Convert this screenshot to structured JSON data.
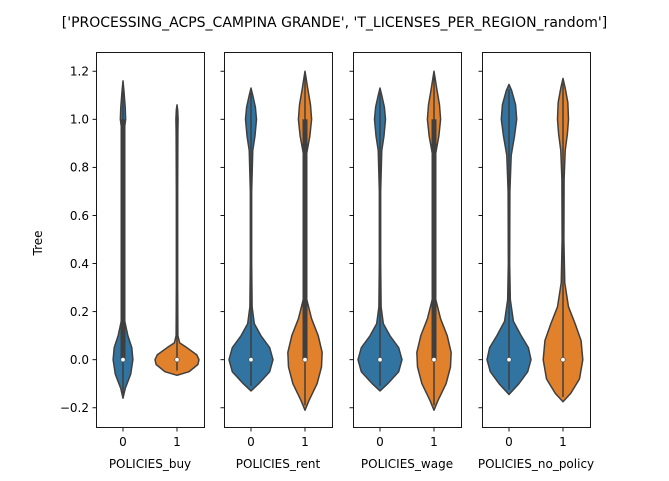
{
  "chart_data": {
    "type": "violin",
    "title": "['PROCESSING_ACPS_CAMPINA GRANDE', 'T_LICENSES_PER_REGION_random']",
    "ylabel": "Tree",
    "ylim": [
      -0.28,
      1.28
    ],
    "yticks": [
      -0.2,
      0.0,
      0.2,
      0.4,
      0.6,
      0.8,
      1.0,
      1.2
    ],
    "ytick_labels": [
      "−0.2",
      "0.0",
      "0.2",
      "0.4",
      "0.6",
      "0.8",
      "1.0",
      "1.2"
    ],
    "categories": [
      "0",
      "1"
    ],
    "colors": {
      "0": "#3274a1",
      "1": "#e1812c",
      "edge": "#3f3f3f",
      "median": "#ffffff"
    },
    "panels": [
      {
        "xlabel": "POLICIES_buy",
        "violins": [
          {
            "category": "0",
            "min": -0.16,
            "max": 1.16,
            "median": 0.0,
            "q1": 0.0,
            "q3": 1.0,
            "profile": [
              [
                -0.16,
                0.0
              ],
              [
                -0.12,
                0.1
              ],
              [
                -0.06,
                0.35
              ],
              [
                0.0,
                0.45
              ],
              [
                0.05,
                0.4
              ],
              [
                0.1,
                0.22
              ],
              [
                0.16,
                0.08
              ],
              [
                0.25,
                0.04
              ],
              [
                0.5,
                0.03
              ],
              [
                0.8,
                0.03
              ],
              [
                0.95,
                0.05
              ],
              [
                1.0,
                0.12
              ],
              [
                1.05,
                0.1
              ],
              [
                1.11,
                0.05
              ],
              [
                1.16,
                0.0
              ]
            ]
          },
          {
            "category": "1",
            "min": -0.065,
            "max": 1.06,
            "median": 0.0,
            "q1": 0.0,
            "q3": 0.0,
            "profile": [
              [
                -0.065,
                0.0
              ],
              [
                -0.05,
                0.55
              ],
              [
                -0.02,
                0.95
              ],
              [
                0.0,
                1.0
              ],
              [
                0.02,
                0.9
              ],
              [
                0.05,
                0.45
              ],
              [
                0.07,
                0.12
              ],
              [
                0.1,
                0.04
              ],
              [
                0.3,
                0.03
              ],
              [
                0.7,
                0.03
              ],
              [
                0.95,
                0.04
              ],
              [
                1.0,
                0.05
              ],
              [
                1.04,
                0.03
              ],
              [
                1.06,
                0.0
              ]
            ]
          }
        ]
      },
      {
        "xlabel": "POLICIES_rent",
        "violins": [
          {
            "category": "0",
            "min": -0.13,
            "max": 1.13,
            "median": 0.0,
            "q1": 0.0,
            "q3": 0.0,
            "profile": [
              [
                -0.13,
                0.0
              ],
              [
                -0.1,
                0.35
              ],
              [
                -0.05,
                0.85
              ],
              [
                0.0,
                1.0
              ],
              [
                0.05,
                0.85
              ],
              [
                0.1,
                0.45
              ],
              [
                0.15,
                0.15
              ],
              [
                0.22,
                0.05
              ],
              [
                0.4,
                0.03
              ],
              [
                0.7,
                0.03
              ],
              [
                0.87,
                0.08
              ],
              [
                0.93,
                0.18
              ],
              [
                1.0,
                0.25
              ],
              [
                1.05,
                0.2
              ],
              [
                1.1,
                0.08
              ],
              [
                1.13,
                0.0
              ]
            ]
          },
          {
            "category": "1",
            "min": -0.21,
            "max": 1.2,
            "median": 0.0,
            "q1": 0.0,
            "q3": 1.0,
            "profile": [
              [
                -0.21,
                0.0
              ],
              [
                -0.17,
                0.18
              ],
              [
                -0.1,
                0.55
              ],
              [
                -0.03,
                0.75
              ],
              [
                0.03,
                0.78
              ],
              [
                0.1,
                0.6
              ],
              [
                0.17,
                0.3
              ],
              [
                0.25,
                0.08
              ],
              [
                0.4,
                0.04
              ],
              [
                0.7,
                0.04
              ],
              [
                0.86,
                0.08
              ],
              [
                0.93,
                0.22
              ],
              [
                1.0,
                0.3
              ],
              [
                1.06,
                0.25
              ],
              [
                1.13,
                0.12
              ],
              [
                1.2,
                0.0
              ]
            ]
          }
        ]
      },
      {
        "xlabel": "POLICIES_wage",
        "violins": [
          {
            "category": "0",
            "min": -0.13,
            "max": 1.13,
            "median": 0.0,
            "q1": 0.0,
            "q3": 0.0,
            "profile": [
              [
                -0.13,
                0.0
              ],
              [
                -0.1,
                0.35
              ],
              [
                -0.05,
                0.85
              ],
              [
                0.0,
                1.0
              ],
              [
                0.05,
                0.85
              ],
              [
                0.1,
                0.45
              ],
              [
                0.15,
                0.15
              ],
              [
                0.22,
                0.05
              ],
              [
                0.4,
                0.03
              ],
              [
                0.7,
                0.03
              ],
              [
                0.87,
                0.08
              ],
              [
                0.93,
                0.18
              ],
              [
                1.0,
                0.25
              ],
              [
                1.05,
                0.2
              ],
              [
                1.1,
                0.08
              ],
              [
                1.13,
                0.0
              ]
            ]
          },
          {
            "category": "1",
            "min": -0.21,
            "max": 1.2,
            "median": 0.0,
            "q1": 0.0,
            "q3": 1.0,
            "profile": [
              [
                -0.21,
                0.0
              ],
              [
                -0.17,
                0.18
              ],
              [
                -0.1,
                0.55
              ],
              [
                -0.03,
                0.75
              ],
              [
                0.03,
                0.78
              ],
              [
                0.1,
                0.6
              ],
              [
                0.17,
                0.3
              ],
              [
                0.25,
                0.08
              ],
              [
                0.4,
                0.04
              ],
              [
                0.7,
                0.04
              ],
              [
                0.86,
                0.08
              ],
              [
                0.93,
                0.22
              ],
              [
                1.0,
                0.3
              ],
              [
                1.06,
                0.25
              ],
              [
                1.13,
                0.12
              ],
              [
                1.2,
                0.0
              ]
            ]
          }
        ]
      },
      {
        "xlabel": "POLICIES_no_policy",
        "violins": [
          {
            "category": "0",
            "min": -0.145,
            "max": 1.145,
            "median": 0.0,
            "q1": 0.0,
            "q3": 0.0,
            "profile": [
              [
                -0.145,
                0.0
              ],
              [
                -0.1,
                0.45
              ],
              [
                -0.05,
                0.85
              ],
              [
                0.0,
                1.0
              ],
              [
                0.05,
                0.88
              ],
              [
                0.1,
                0.55
              ],
              [
                0.16,
                0.2
              ],
              [
                0.25,
                0.06
              ],
              [
                0.4,
                0.03
              ],
              [
                0.7,
                0.04
              ],
              [
                0.85,
                0.1
              ],
              [
                0.93,
                0.25
              ],
              [
                1.0,
                0.35
              ],
              [
                1.06,
                0.3
              ],
              [
                1.12,
                0.12
              ],
              [
                1.145,
                0.0
              ]
            ]
          },
          {
            "category": "1",
            "min": -0.175,
            "max": 1.17,
            "median": 0.0,
            "q1": 0.0,
            "q3": 0.0,
            "profile": [
              [
                -0.175,
                0.0
              ],
              [
                -0.14,
                0.35
              ],
              [
                -0.08,
                0.75
              ],
              [
                0.0,
                0.9
              ],
              [
                0.08,
                0.82
              ],
              [
                0.15,
                0.55
              ],
              [
                0.22,
                0.25
              ],
              [
                0.32,
                0.08
              ],
              [
                0.5,
                0.04
              ],
              [
                0.75,
                0.05
              ],
              [
                0.87,
                0.1
              ],
              [
                0.94,
                0.2
              ],
              [
                1.0,
                0.25
              ],
              [
                1.07,
                0.22
              ],
              [
                1.13,
                0.1
              ],
              [
                1.17,
                0.0
              ]
            ]
          }
        ]
      }
    ]
  }
}
